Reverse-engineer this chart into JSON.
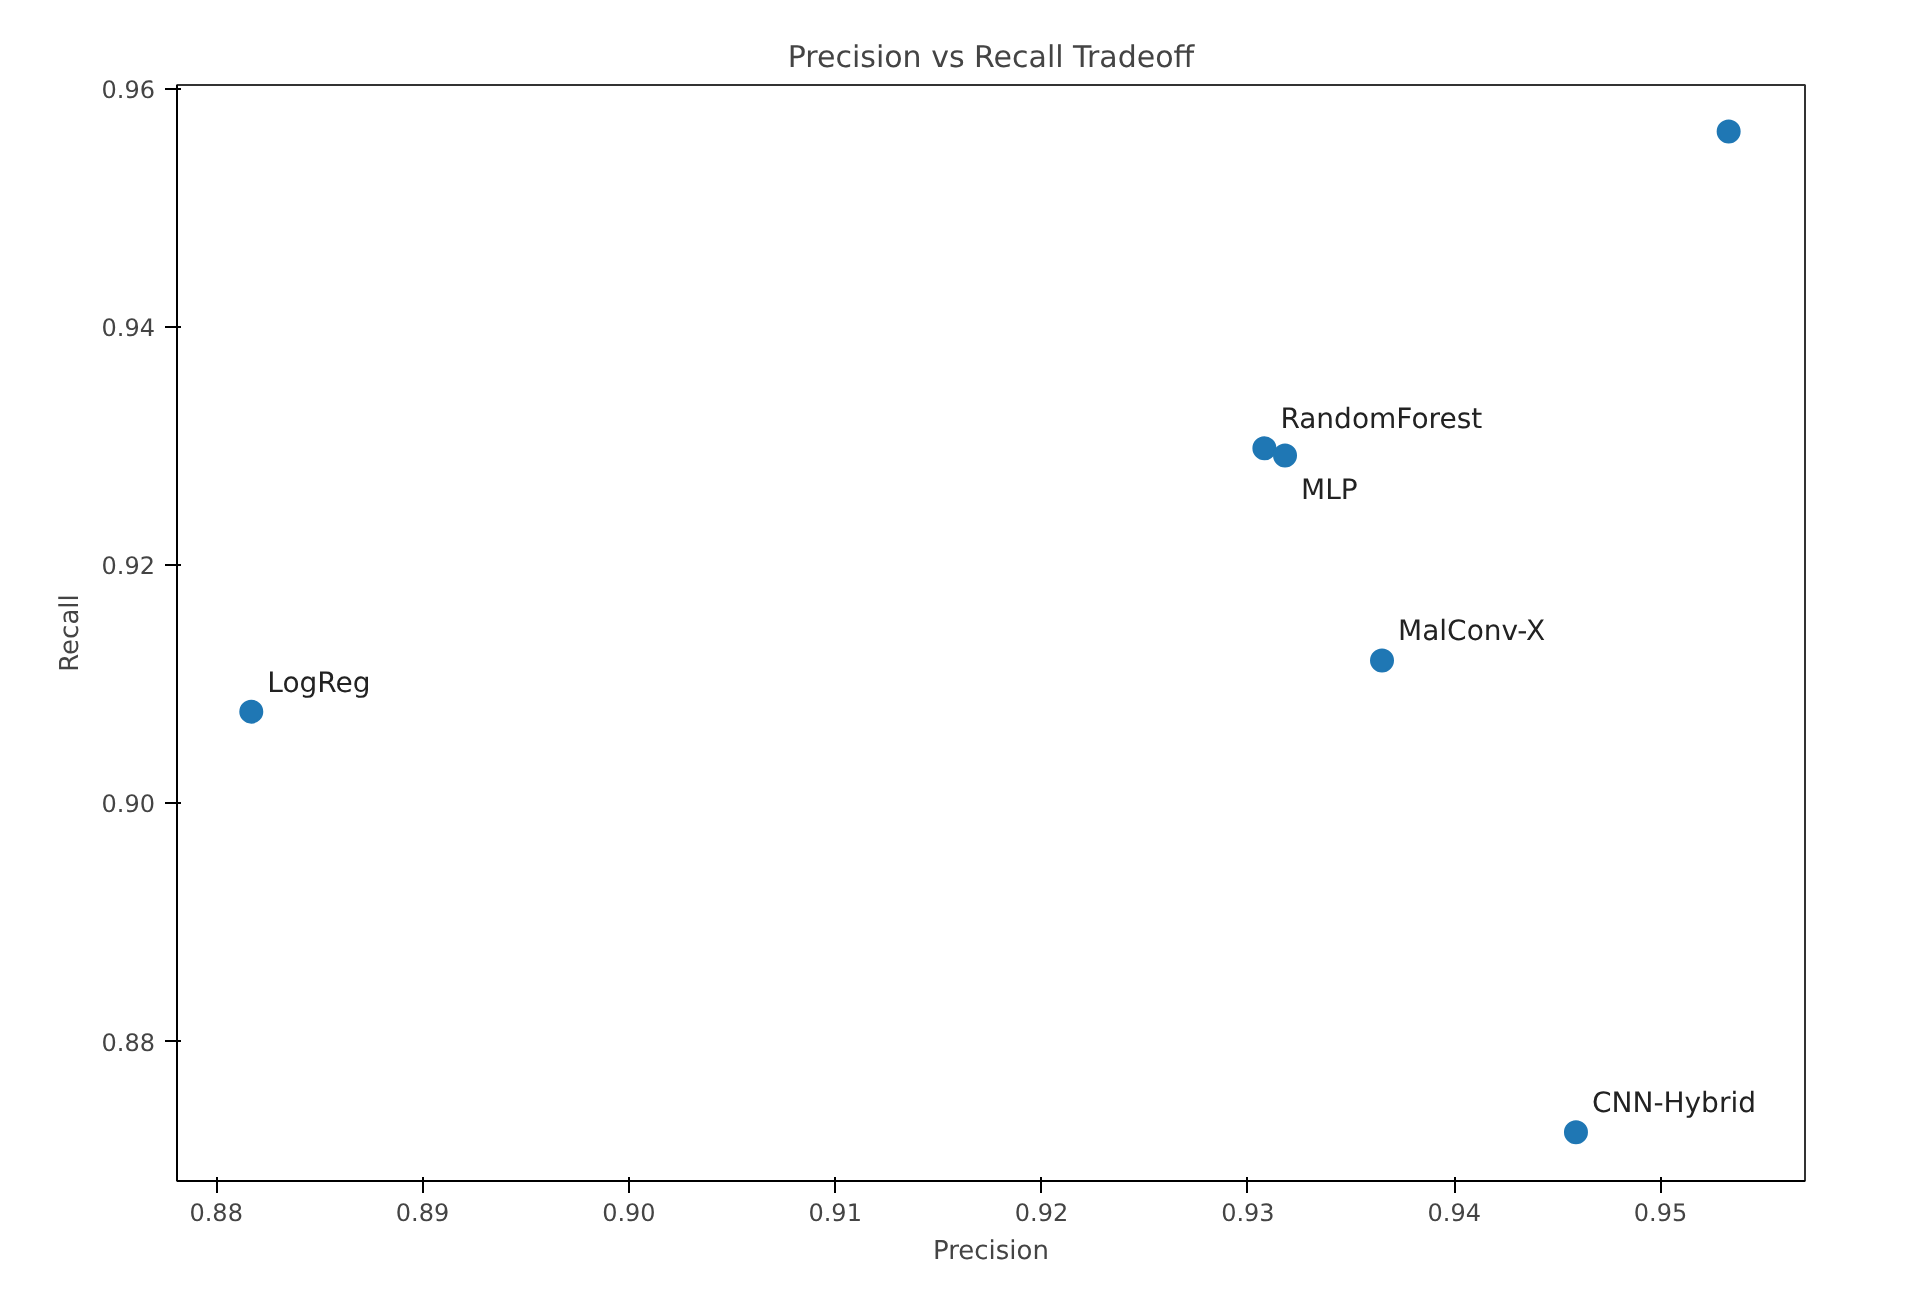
{
  "chart_data": {
    "type": "scatter",
    "title": "Precision vs Recall Tradeoff",
    "xlabel": "Precision",
    "ylabel": "Recall",
    "x": [
      0.8817,
      0.9308,
      0.9318,
      0.9365,
      0.9459,
      0.9533
    ],
    "series": [
      {
        "color": "#1f77b4",
        "values": [
          0.9077,
          0.9298,
          0.9292,
          0.912,
          0.8724,
          0.9564
        ]
      }
    ],
    "annotations": [
      {
        "text": "LogReg",
        "x": 0.8817,
        "y": 0.9077
      },
      {
        "text": "RandomForest",
        "x": 0.9308,
        "y": 0.9298
      },
      {
        "text": "MLP",
        "x": 0.9318,
        "y": 0.9292
      },
      {
        "text": "MalConv-X",
        "x": 0.9365,
        "y": 0.912
      },
      {
        "text": "CNN-Hybrid",
        "x": 0.9459,
        "y": 0.8724
      }
    ],
    "xlim": [
      0.8781,
      0.957
    ],
    "ylim": [
      0.8683,
      0.9603
    ],
    "xticks": [
      0.88,
      0.89,
      {
        "value": 0.9,
        "label": "0.90"
      },
      0.91,
      0.92,
      0.93,
      0.94,
      0.95
    ],
    "yticks": [
      0.88,
      {
        "value": 0.9,
        "label": "0.90"
      },
      0.92,
      0.94,
      0.96
    ],
    "marker": "circle",
    "grid": false
  }
}
